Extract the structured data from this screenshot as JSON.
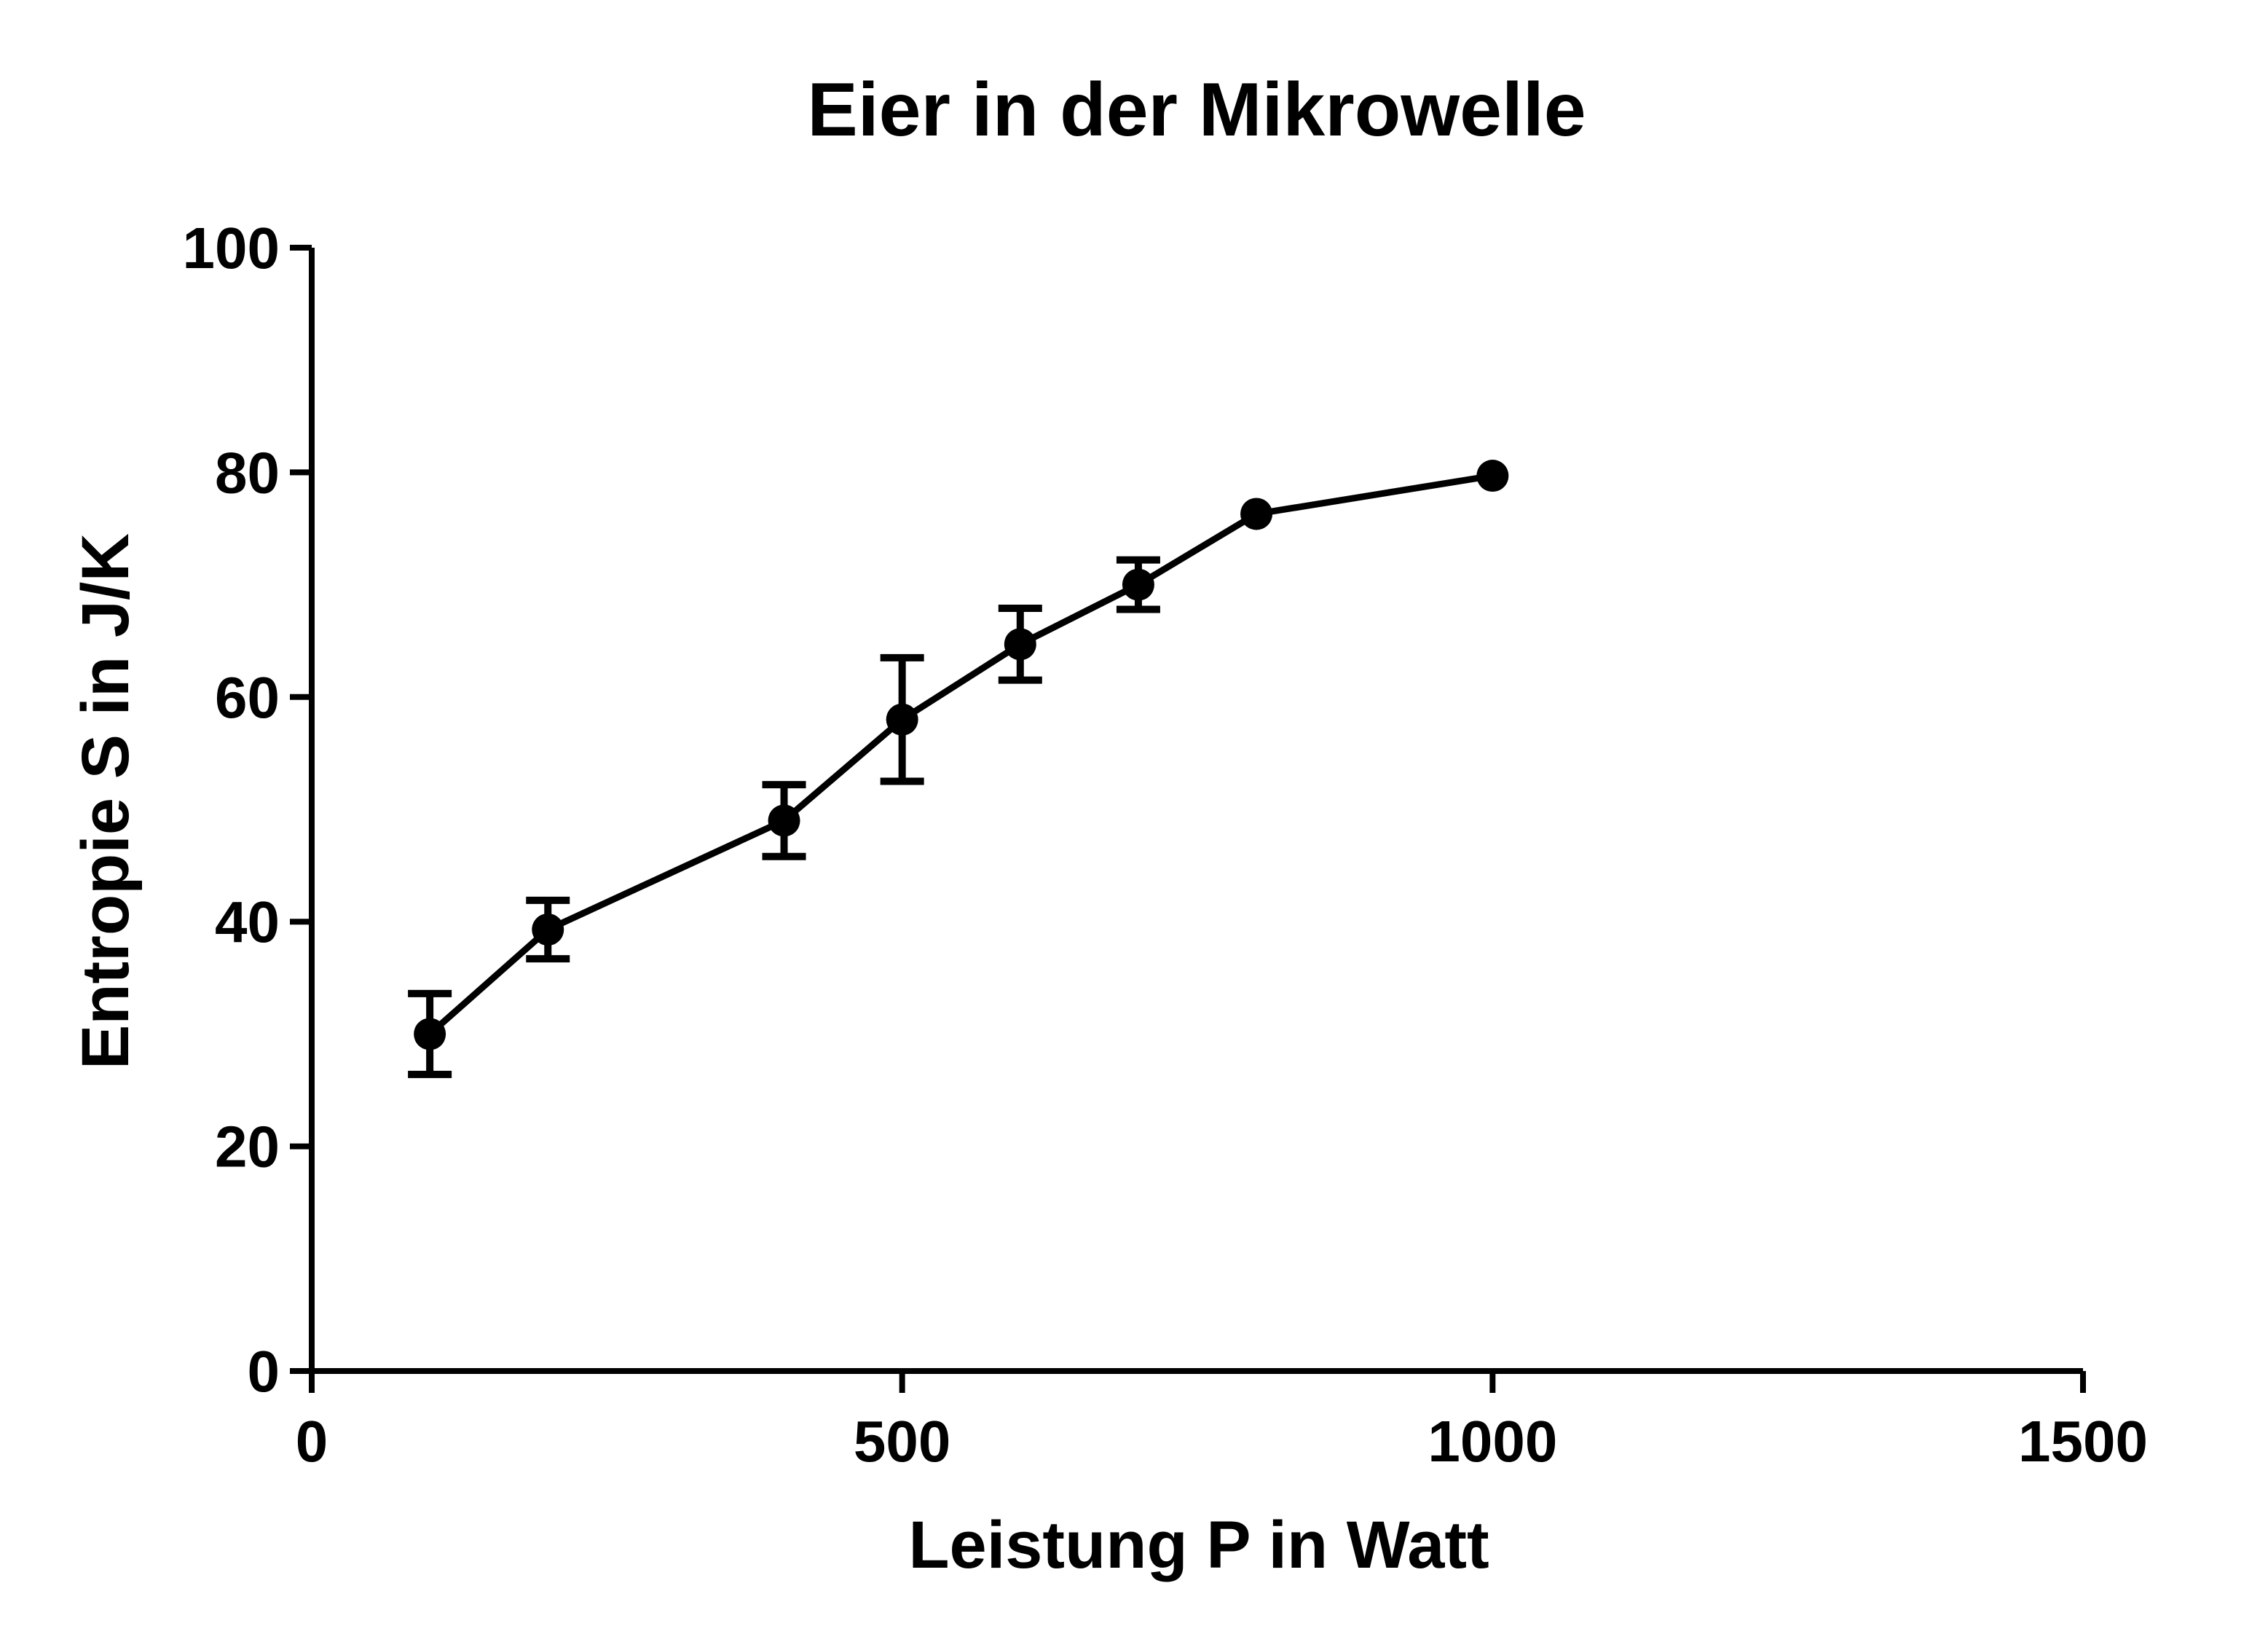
{
  "chart_data": {
    "type": "line",
    "title": "Eier in der Mikrowelle",
    "xlabel": "Leistung P in  Watt",
    "ylabel": "Entropie  S in J/K",
    "xlim": [
      0,
      1500
    ],
    "ylim": [
      0,
      100
    ],
    "x_ticks": [
      0,
      500,
      1000,
      1500
    ],
    "y_ticks": [
      0,
      20,
      40,
      60,
      80,
      100
    ],
    "grid": false,
    "legend": "none",
    "color": "#000000",
    "series": [
      {
        "x": [
          100,
          200,
          400,
          500,
          600,
          700,
          800,
          1000
        ],
        "y": [
          30,
          39.3,
          49,
          58,
          64.7,
          70,
          76.3,
          79.7
        ],
        "error": [
          3.6,
          2.6,
          3.2,
          5.5,
          3.2,
          2.2,
          0,
          0
        ]
      }
    ]
  }
}
